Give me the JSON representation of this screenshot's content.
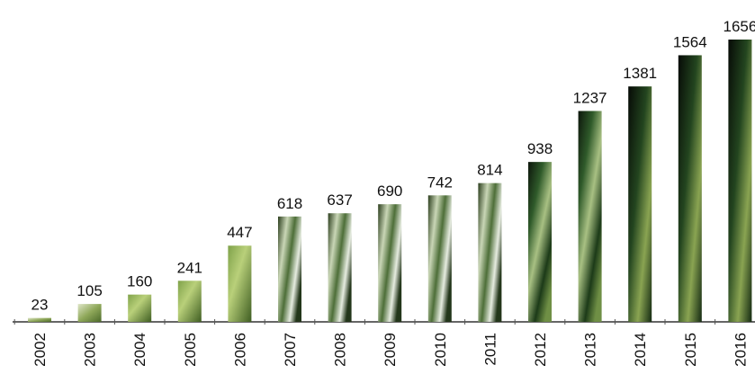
{
  "chart_data": {
    "type": "bar",
    "categories": [
      "2002",
      "2003",
      "2004",
      "2005",
      "2006",
      "2007",
      "2008",
      "2009",
      "2010",
      "2011",
      "2012",
      "2013",
      "2014",
      "2015",
      "2016"
    ],
    "values": [
      23,
      105,
      160,
      241,
      447,
      618,
      637,
      690,
      742,
      814,
      938,
      1237,
      1381,
      1564,
      1656
    ]
  }
}
